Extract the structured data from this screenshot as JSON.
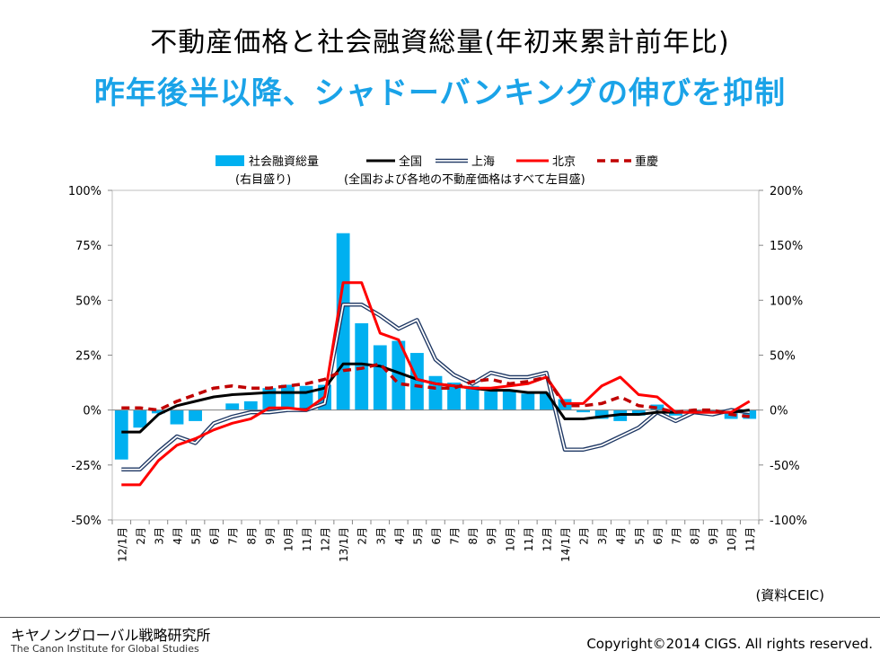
{
  "header": {
    "title": "不動産価格と社会融資総量(年初来累計前年比)",
    "subtitle": "昨年後半以降、シャドーバンキングの伸びを抑制"
  },
  "footer": {
    "source_note": "(資料CEIC)",
    "org_ja": "キヤノングローバル戦略研究所",
    "org_en": "The Canon Institute for Global Studies",
    "copyright": "Copyright©2014 CIGS. All rights reserved."
  },
  "colors": {
    "bar": "#00b0f0",
    "national": "#000000",
    "shanghai": "#1f3864",
    "beijing": "#ff0000",
    "chongqing": "#c00000"
  },
  "chart_data": {
    "type": "bar",
    "legend_note_right": "(右目盛り)",
    "legend_note_left": "(全国および各地の不動産価格はすべて左目盛)",
    "categories": [
      "12/1月",
      "2月",
      "3月",
      "4月",
      "5月",
      "6月",
      "7月",
      "8月",
      "9月",
      "10月",
      "11月",
      "12月",
      "13/1月",
      "2月",
      "3月",
      "4月",
      "5月",
      "6月",
      "7月",
      "8月",
      "9月",
      "10月",
      "11月",
      "12月",
      "14/1月",
      "2月",
      "3月",
      "4月",
      "5月",
      "6月",
      "7月",
      "8月",
      "9月",
      "10月",
      "11月"
    ],
    "left_axis": {
      "ylim": [
        -50,
        100
      ],
      "ticks": [
        "-50%",
        "-25%",
        "0%",
        "25%",
        "50%",
        "75%",
        "100%"
      ],
      "values": [
        -50,
        -25,
        0,
        25,
        50,
        75,
        100
      ]
    },
    "right_axis": {
      "ylim": [
        -100,
        200
      ],
      "ticks": [
        "-100%",
        "-50%",
        "0%",
        "50%",
        "100%",
        "150%",
        "200%"
      ],
      "values": [
        -100,
        -50,
        0,
        50,
        100,
        150,
        200
      ]
    },
    "series": [
      {
        "name": "社会融資総量",
        "type": "bar",
        "axis": "right",
        "values": [
          -45,
          -16,
          -3,
          -13,
          -10,
          0,
          6,
          8,
          20,
          23,
          22,
          23,
          161,
          79,
          59,
          63,
          52,
          31,
          25,
          22,
          17,
          17,
          15,
          16,
          10,
          -2,
          -8,
          -10,
          -5,
          5,
          -5,
          -3,
          -2,
          -8,
          -8
        ]
      },
      {
        "name": "全国",
        "type": "line",
        "axis": "left",
        "values": [
          -10,
          -10,
          -2,
          2,
          4,
          6,
          7,
          7.5,
          8,
          8,
          8,
          10,
          21,
          21,
          20,
          17,
          14,
          12,
          11,
          10,
          9,
          9,
          8,
          8,
          -4,
          -4,
          -3,
          -2,
          -2,
          -1,
          -1,
          -1,
          -1,
          -1,
          0
        ]
      },
      {
        "name": "上海",
        "type": "line",
        "axis": "left",
        "values": [
          -27,
          -27,
          -19,
          -12,
          -15,
          -6,
          -3,
          -1,
          -1,
          0,
          0,
          3,
          48,
          48,
          43,
          37,
          41,
          23,
          16,
          12,
          17,
          15,
          15,
          17,
          -18,
          -18,
          -16,
          -12,
          -8,
          -1,
          -5,
          -1,
          -2,
          0,
          -1
        ]
      },
      {
        "name": "北京",
        "type": "line",
        "axis": "left",
        "values": [
          -34,
          -34,
          -23,
          -16,
          -13,
          -9,
          -6,
          -4,
          1,
          1,
          0,
          6,
          58,
          58,
          35,
          32,
          14,
          12,
          11,
          10,
          10,
          11,
          12,
          15,
          3,
          3,
          11,
          15,
          7,
          6,
          -1,
          -1,
          -1,
          -1,
          4
        ]
      },
      {
        "name": "重慶",
        "type": "line",
        "axis": "left",
        "values": [
          1,
          1,
          0,
          4,
          7,
          10,
          11,
          10,
          10,
          11,
          12,
          14,
          18,
          19,
          21,
          12,
          11,
          10,
          10,
          13,
          14,
          12,
          13,
          15,
          2,
          2,
          3,
          6,
          2,
          1,
          -1,
          0,
          0,
          -2,
          -3
        ]
      }
    ]
  }
}
